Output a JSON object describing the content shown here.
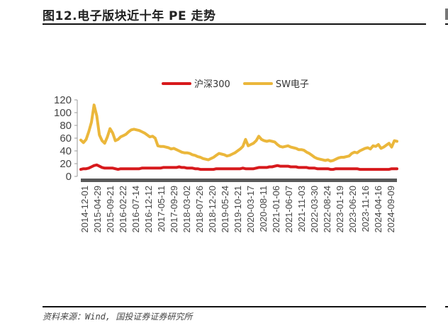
{
  "figure": {
    "title": "图12.电子版块近十年 PE 走势",
    "source": "资料来源：Wind, 国投证券证券研究所"
  },
  "legend": {
    "items": [
      {
        "label": "沪深300",
        "color": "#d7191c"
      },
      {
        "label": "SW电子",
        "color": "#ebb73b"
      }
    ]
  },
  "chart_data": {
    "type": "line",
    "title": "电子版块近十年 PE 走势",
    "xlabel": "",
    "ylabel": "",
    "ylim": [
      0,
      120
    ],
    "yticks": [
      0,
      20,
      40,
      60,
      80,
      100,
      120
    ],
    "grid": false,
    "legend_position": "top",
    "x_tick_labels": [
      "2014-12-01",
      "2015-04-29",
      "2015-09-21",
      "2016-02-22",
      "2016-07-14",
      "2016-12-12",
      "2017-05-11",
      "2017-09-29",
      "2018-03-02",
      "2018-07-26",
      "2018-12-20",
      "2019-05-24",
      "2019-10-21",
      "2020-03-17",
      "2020-08-11",
      "2021-01-06",
      "2021-06-07",
      "2021-11-03",
      "2022-03-30",
      "2022-08-24",
      "2023-01-19",
      "2023-06-20",
      "2023-11-16",
      "2024-04-16",
      "2024-09-09"
    ],
    "x": [
      "2014-12",
      "2015-01",
      "2015-02",
      "2015-03",
      "2015-04",
      "2015-05",
      "2015-06",
      "2015-07",
      "2015-08",
      "2015-09",
      "2015-10",
      "2015-11",
      "2015-12",
      "2016-01",
      "2016-02",
      "2016-03",
      "2016-04",
      "2016-05",
      "2016-06",
      "2016-07",
      "2016-08",
      "2016-09",
      "2016-10",
      "2016-11",
      "2016-12",
      "2017-01",
      "2017-02",
      "2017-03",
      "2017-04",
      "2017-05",
      "2017-06",
      "2017-07",
      "2017-08",
      "2017-09",
      "2017-10",
      "2017-11",
      "2017-12",
      "2018-01",
      "2018-02",
      "2018-03",
      "2018-04",
      "2018-05",
      "2018-06",
      "2018-07",
      "2018-08",
      "2018-09",
      "2018-10",
      "2018-11",
      "2018-12",
      "2019-01",
      "2019-02",
      "2019-03",
      "2019-04",
      "2019-05",
      "2019-06",
      "2019-07",
      "2019-08",
      "2019-09",
      "2019-10",
      "2019-11",
      "2019-12",
      "2020-01",
      "2020-02",
      "2020-03",
      "2020-04",
      "2020-05",
      "2020-06",
      "2020-07",
      "2020-08",
      "2020-09",
      "2020-10",
      "2020-11",
      "2020-12",
      "2021-01",
      "2021-02",
      "2021-03",
      "2021-04",
      "2021-05",
      "2021-06",
      "2021-07",
      "2021-08",
      "2021-09",
      "2021-10",
      "2021-11",
      "2021-12",
      "2022-01",
      "2022-02",
      "2022-03",
      "2022-04",
      "2022-05",
      "2022-06",
      "2022-07",
      "2022-08",
      "2022-09",
      "2022-10",
      "2022-11",
      "2022-12",
      "2023-01",
      "2023-02",
      "2023-03",
      "2023-04",
      "2023-05",
      "2023-06",
      "2023-07",
      "2023-08",
      "2023-09",
      "2023-10",
      "2023-11",
      "2023-12",
      "2024-01",
      "2024-02",
      "2024-03",
      "2024-04",
      "2024-05",
      "2024-06",
      "2024-07",
      "2024-08",
      "2024-09",
      "2024-10",
      "2024-11"
    ],
    "series": [
      {
        "name": "沪深300",
        "color": "#d7191c",
        "values": [
          11,
          12,
          12,
          13,
          15,
          17,
          18,
          16,
          14,
          13,
          13,
          13,
          13,
          12,
          11,
          12,
          12,
          12,
          12,
          12,
          12,
          12,
          12,
          13,
          13,
          13,
          13,
          13,
          13,
          13,
          13,
          14,
          14,
          14,
          14,
          14,
          14,
          15,
          14,
          14,
          13,
          13,
          13,
          12,
          12,
          11,
          11,
          11,
          11,
          11,
          11,
          12,
          12,
          12,
          12,
          12,
          12,
          12,
          12,
          12,
          12,
          13,
          12,
          12,
          12,
          12,
          13,
          14,
          14,
          14,
          14,
          15,
          15,
          16,
          17,
          16,
          16,
          16,
          16,
          15,
          15,
          15,
          14,
          14,
          14,
          14,
          13,
          13,
          13,
          12,
          12,
          12,
          12,
          12,
          11,
          11,
          12,
          12,
          12,
          12,
          12,
          12,
          12,
          12,
          12,
          11,
          11,
          11,
          11,
          11,
          11,
          11,
          11,
          11,
          11,
          11,
          11,
          12,
          12,
          12
        ]
      },
      {
        "name": "SW电子",
        "color": "#ebb73b",
        "values": [
          57,
          53,
          58,
          70,
          85,
          112,
          95,
          65,
          56,
          52,
          62,
          75,
          68,
          56,
          58,
          62,
          64,
          66,
          70,
          73,
          74,
          73,
          72,
          70,
          68,
          65,
          62,
          63,
          60,
          48,
          47,
          47,
          46,
          45,
          43,
          44,
          42,
          40,
          38,
          37,
          37,
          36,
          34,
          33,
          31,
          30,
          28,
          27,
          26,
          28,
          30,
          33,
          36,
          35,
          34,
          32,
          33,
          35,
          37,
          40,
          43,
          47,
          58,
          48,
          50,
          52,
          56,
          63,
          58,
          56,
          55,
          56,
          55,
          54,
          50,
          47,
          46,
          47,
          48,
          46,
          45,
          44,
          42,
          42,
          41,
          38,
          36,
          33,
          30,
          28,
          27,
          26,
          25,
          26,
          24,
          25,
          27,
          29,
          30,
          30,
          31,
          32,
          36,
          38,
          37,
          40,
          42,
          44,
          45,
          43,
          48,
          47,
          50,
          44,
          46,
          49,
          52,
          46,
          56,
          55
        ]
      }
    ]
  }
}
